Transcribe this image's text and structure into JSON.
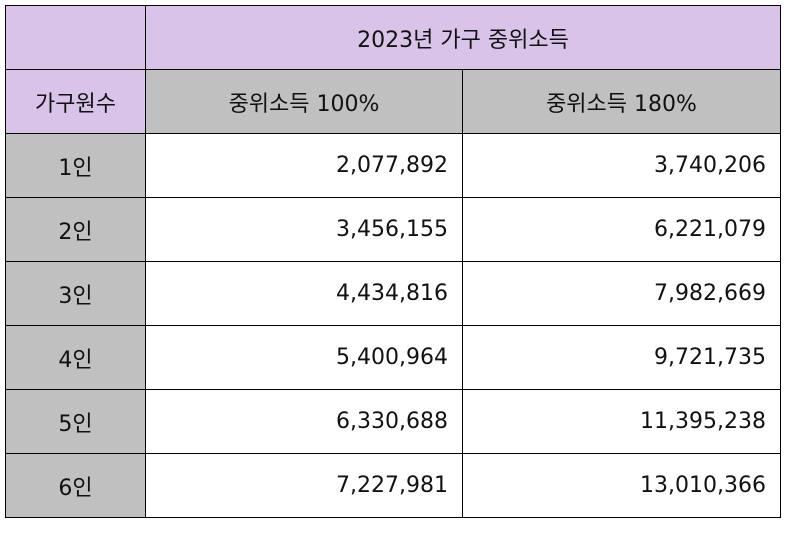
{
  "table": {
    "title": "2023년 가구 중위소득",
    "header": {
      "household_label": "가구원수",
      "col_100": "중위소득 100%",
      "col_180": "중위소득 180%"
    },
    "rows": [
      {
        "household": "1인",
        "median_100": "2,077,892",
        "median_180": "3,740,206"
      },
      {
        "household": "2인",
        "median_100": "3,456,155",
        "median_180": "6,221,079"
      },
      {
        "household": "3인",
        "median_100": "4,434,816",
        "median_180": "7,982,669"
      },
      {
        "household": "4인",
        "median_100": "5,400,964",
        "median_180": "9,721,735"
      },
      {
        "household": "5인",
        "median_100": "6,330,688",
        "median_180": "11,395,238"
      },
      {
        "household": "6인",
        "median_100": "7,227,981",
        "median_180": "13,010,366"
      }
    ]
  },
  "colors": {
    "header_purple": "#d9c3e9",
    "header_grey": "#c0c0c0"
  }
}
